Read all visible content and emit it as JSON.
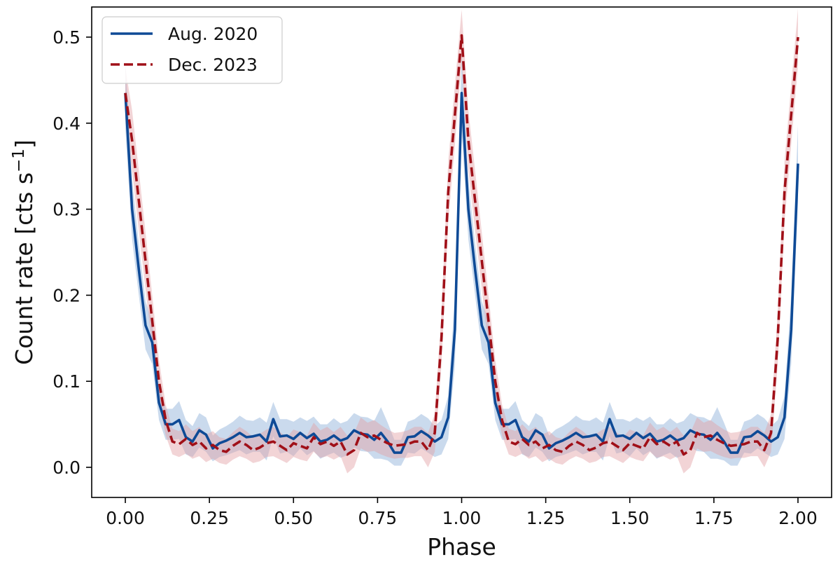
{
  "chart_data": {
    "type": "line",
    "title": "",
    "xlabel": "Phase",
    "ylabel": "Count rate [cts s",
    "ylabel_sup": "−1",
    "ylabel_close": "]",
    "xlim": [
      -0.1,
      2.1
    ],
    "ylim": [
      -0.035,
      0.535
    ],
    "xticks": [
      0.0,
      0.25,
      0.5,
      0.75,
      1.0,
      1.25,
      1.5,
      1.75,
      2.0
    ],
    "xtick_labels": [
      "0.00",
      "0.25",
      "0.50",
      "0.75",
      "1.00",
      "1.25",
      "1.50",
      "1.75",
      "2.00"
    ],
    "yticks": [
      0.0,
      0.1,
      0.2,
      0.3,
      0.4,
      0.5
    ],
    "ytick_labels": [
      "0.0",
      "0.1",
      "0.2",
      "0.3",
      "0.4",
      "0.5"
    ],
    "grid": false,
    "legend_position": "top-left",
    "x": [
      0.0,
      0.02,
      0.04,
      0.06,
      0.08,
      0.1,
      0.12,
      0.14,
      0.16,
      0.18,
      0.2,
      0.22,
      0.24,
      0.26,
      0.28,
      0.3,
      0.32,
      0.34,
      0.36,
      0.38,
      0.4,
      0.42,
      0.44,
      0.46,
      0.48,
      0.5,
      0.52,
      0.54,
      0.56,
      0.58,
      0.6,
      0.62,
      0.64,
      0.66,
      0.68,
      0.7,
      0.72,
      0.74,
      0.76,
      0.78,
      0.8,
      0.82,
      0.84,
      0.86,
      0.88,
      0.9,
      0.92,
      0.94,
      0.96,
      0.98,
      1.0,
      1.02,
      1.04,
      1.06,
      1.08,
      1.1,
      1.12,
      1.14,
      1.16,
      1.18,
      1.2,
      1.22,
      1.24,
      1.26,
      1.28,
      1.3,
      1.32,
      1.34,
      1.36,
      1.38,
      1.4,
      1.42,
      1.44,
      1.46,
      1.48,
      1.5,
      1.52,
      1.54,
      1.56,
      1.58,
      1.6,
      1.62,
      1.64,
      1.66,
      1.68,
      1.7,
      1.72,
      1.74,
      1.76,
      1.78,
      1.8,
      1.82,
      1.84,
      1.86,
      1.88,
      1.9,
      1.92,
      1.94,
      1.96,
      1.98,
      2.0
    ],
    "series": [
      {
        "name": "Aug. 2020",
        "color": "#0e4a96",
        "band_color": "#9fbcdf",
        "style": "solid",
        "values": [
          0.435,
          0.3,
          0.23,
          0.165,
          0.145,
          0.075,
          0.05,
          0.05,
          0.055,
          0.035,
          0.03,
          0.043,
          0.038,
          0.022,
          0.028,
          0.031,
          0.035,
          0.04,
          0.035,
          0.036,
          0.038,
          0.03,
          0.056,
          0.036,
          0.037,
          0.033,
          0.04,
          0.034,
          0.039,
          0.03,
          0.032,
          0.037,
          0.031,
          0.034,
          0.043,
          0.039,
          0.038,
          0.032,
          0.04,
          0.03,
          0.017,
          0.017,
          0.035,
          0.036,
          0.042,
          0.037,
          0.03,
          0.035,
          0.058,
          0.16,
          0.435,
          0.3,
          0.23,
          0.165,
          0.145,
          0.075,
          0.05,
          0.05,
          0.055,
          0.035,
          0.03,
          0.043,
          0.038,
          0.022,
          0.028,
          0.031,
          0.035,
          0.04,
          0.035,
          0.036,
          0.038,
          0.03,
          0.056,
          0.036,
          0.037,
          0.033,
          0.04,
          0.034,
          0.039,
          0.03,
          0.032,
          0.037,
          0.031,
          0.034,
          0.043,
          0.039,
          0.038,
          0.032,
          0.04,
          0.03,
          0.017,
          0.017,
          0.035,
          0.036,
          0.042,
          0.037,
          0.03,
          0.035,
          0.058,
          0.16,
          0.353
        ],
        "errors": [
          0.04,
          0.035,
          0.03,
          0.028,
          0.025,
          0.02,
          0.018,
          0.018,
          0.022,
          0.02,
          0.018,
          0.02,
          0.02,
          0.015,
          0.016,
          0.017,
          0.018,
          0.02,
          0.02,
          0.018,
          0.02,
          0.022,
          0.02,
          0.02,
          0.019,
          0.02,
          0.018,
          0.02,
          0.02,
          0.02,
          0.018,
          0.02,
          0.02,
          0.02,
          0.02,
          0.02,
          0.02,
          0.022,
          0.03,
          0.022,
          0.015,
          0.015,
          0.018,
          0.02,
          0.02,
          0.02,
          0.018,
          0.02,
          0.025,
          0.04,
          0.045,
          0.035,
          0.03,
          0.028,
          0.025,
          0.02,
          0.018,
          0.018,
          0.022,
          0.02,
          0.018,
          0.02,
          0.02,
          0.015,
          0.016,
          0.017,
          0.018,
          0.02,
          0.02,
          0.018,
          0.02,
          0.022,
          0.02,
          0.02,
          0.019,
          0.02,
          0.018,
          0.02,
          0.02,
          0.02,
          0.018,
          0.02,
          0.02,
          0.02,
          0.02,
          0.02,
          0.02,
          0.022,
          0.03,
          0.022,
          0.015,
          0.015,
          0.018,
          0.02,
          0.02,
          0.02,
          0.018,
          0.02,
          0.025,
          0.04,
          0.045
        ]
      },
      {
        "name": "Dec. 2023",
        "color": "#a01018",
        "band_color": "#e3a0a4",
        "style": "dashed",
        "values": [
          0.435,
          0.38,
          0.31,
          0.24,
          0.17,
          0.1,
          0.055,
          0.03,
          0.027,
          0.033,
          0.026,
          0.03,
          0.022,
          0.026,
          0.02,
          0.018,
          0.025,
          0.03,
          0.026,
          0.02,
          0.023,
          0.028,
          0.03,
          0.025,
          0.02,
          0.028,
          0.025,
          0.022,
          0.035,
          0.027,
          0.03,
          0.025,
          0.03,
          0.015,
          0.02,
          0.04,
          0.035,
          0.037,
          0.032,
          0.028,
          0.025,
          0.026,
          0.027,
          0.03,
          0.03,
          0.02,
          0.04,
          0.15,
          0.32,
          0.41,
          0.502,
          0.38,
          0.31,
          0.24,
          0.17,
          0.1,
          0.055,
          0.03,
          0.027,
          0.033,
          0.026,
          0.03,
          0.022,
          0.026,
          0.02,
          0.018,
          0.025,
          0.03,
          0.026,
          0.02,
          0.023,
          0.028,
          0.03,
          0.025,
          0.02,
          0.028,
          0.025,
          0.022,
          0.035,
          0.027,
          0.03,
          0.025,
          0.03,
          0.015,
          0.02,
          0.04,
          0.035,
          0.037,
          0.032,
          0.028,
          0.025,
          0.026,
          0.027,
          0.03,
          0.03,
          0.02,
          0.04,
          0.15,
          0.32,
          0.41,
          0.5
        ],
        "errors": [
          0.03,
          0.035,
          0.035,
          0.033,
          0.03,
          0.025,
          0.018,
          0.015,
          0.015,
          0.017,
          0.016,
          0.017,
          0.016,
          0.016,
          0.015,
          0.015,
          0.016,
          0.017,
          0.016,
          0.015,
          0.016,
          0.016,
          0.017,
          0.016,
          0.015,
          0.016,
          0.016,
          0.015,
          0.017,
          0.016,
          0.017,
          0.016,
          0.017,
          0.022,
          0.02,
          0.018,
          0.017,
          0.018,
          0.017,
          0.016,
          0.015,
          0.015,
          0.016,
          0.017,
          0.017,
          0.02,
          0.022,
          0.03,
          0.035,
          0.035,
          0.03,
          0.035,
          0.035,
          0.033,
          0.03,
          0.025,
          0.018,
          0.015,
          0.015,
          0.017,
          0.016,
          0.017,
          0.016,
          0.016,
          0.015,
          0.015,
          0.016,
          0.017,
          0.016,
          0.015,
          0.016,
          0.016,
          0.017,
          0.016,
          0.015,
          0.016,
          0.016,
          0.015,
          0.017,
          0.016,
          0.017,
          0.016,
          0.017,
          0.022,
          0.02,
          0.018,
          0.017,
          0.018,
          0.017,
          0.016,
          0.015,
          0.015,
          0.016,
          0.017,
          0.017,
          0.02,
          0.022,
          0.03,
          0.035,
          0.035,
          0.033
        ]
      }
    ]
  }
}
